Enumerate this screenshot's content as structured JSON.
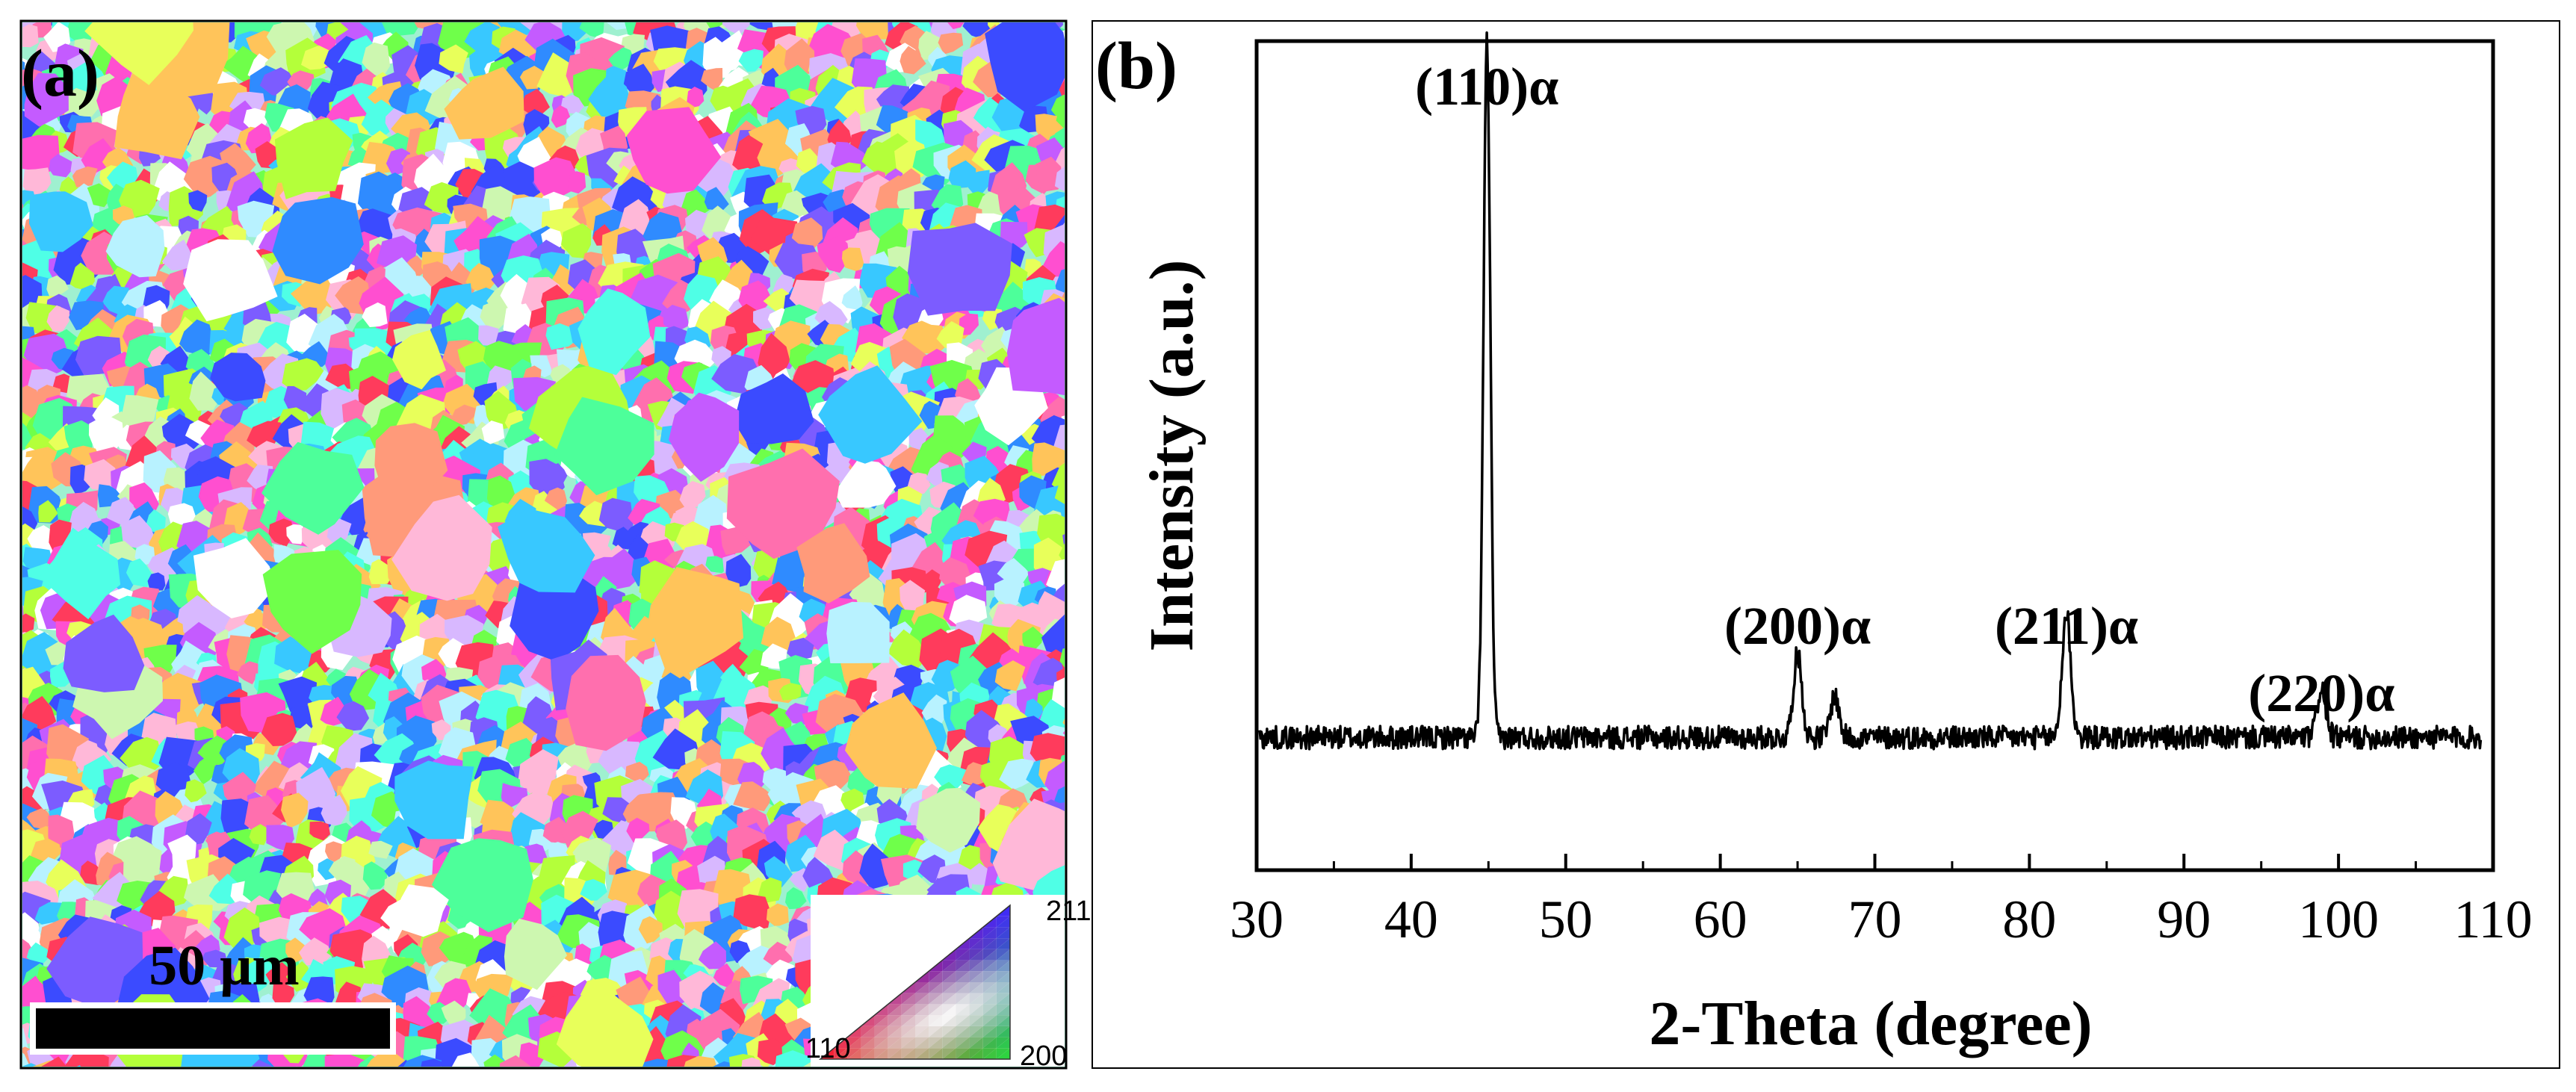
{
  "panels": {
    "a": {
      "label": "(a)",
      "scalebar_label": "50 μm",
      "ipf_key": {
        "corner_top": "211",
        "corner_left": "110",
        "corner_right": "200"
      }
    },
    "b": {
      "label": "(b)"
    }
  },
  "chart_data": {
    "type": "line",
    "xlabel": "2-Theta (degree)",
    "ylabel": "Intensity (a.u.)",
    "xlim": [
      30,
      110
    ],
    "ylim": [
      0,
      1
    ],
    "xticks": [
      30,
      40,
      50,
      60,
      70,
      80,
      90,
      100,
      110
    ],
    "y_ticks_shown": false,
    "baseline": 0.16,
    "series": [
      {
        "peaks": [
          {
            "x": 44.9,
            "y": 1.0
          },
          {
            "x": 65.0,
            "y": 0.26
          },
          {
            "x": 67.4,
            "y": 0.21
          },
          {
            "x": 82.4,
            "y": 0.31
          },
          {
            "x": 98.9,
            "y": 0.22
          }
        ]
      }
    ],
    "annotations": [
      {
        "text": "(110)α",
        "x": 44.9
      },
      {
        "text": "(200)α",
        "x": 65.0
      },
      {
        "text": "(211)α",
        "x": 82.4
      },
      {
        "text": "(220)α",
        "x": 98.9
      }
    ]
  },
  "colors": {
    "line": "#000000",
    "frame": "#000000",
    "background": "#ffffff",
    "grain_palette": [
      "#ff3b5c",
      "#ff6fae",
      "#ff4fd0",
      "#c45bff",
      "#7c5cff",
      "#3b4bff",
      "#2f8bff",
      "#38c8ff",
      "#4fffe6",
      "#4dff9a",
      "#6fff4a",
      "#b4ff3a",
      "#e8ff5a",
      "#ffc45a",
      "#ff9a7a",
      "#ffb8d8",
      "#d8b8ff",
      "#b8f2ff",
      "#ffffff",
      "#cdf7b0"
    ]
  }
}
